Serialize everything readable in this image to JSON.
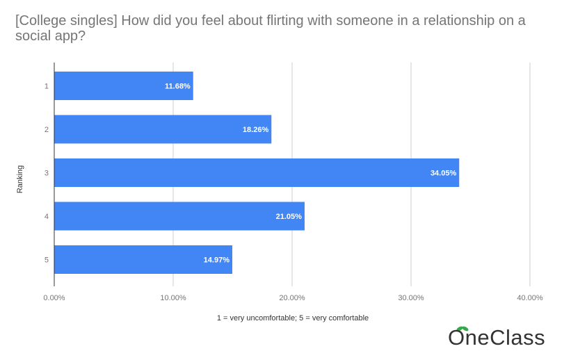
{
  "chart_data": {
    "type": "bar",
    "orientation": "horizontal",
    "title": "[College singles] How did you feel about flirting with someone in a relationship on a social app?",
    "categories": [
      "1",
      "2",
      "3",
      "4",
      "5"
    ],
    "values": [
      11.68,
      18.26,
      34.05,
      21.05,
      14.97
    ],
    "value_labels": [
      "11.68%",
      "18.26%",
      "34.05%",
      "21.05%",
      "14.97%"
    ],
    "xlabel": "1 = very uncomfortable; 5 = very comfortable",
    "ylabel": "Ranking",
    "xlim": [
      0,
      40
    ],
    "xticks": [
      "0.00%",
      "10.00%",
      "20.00%",
      "30.00%",
      "40.00%"
    ],
    "grid": true,
    "legend": "none"
  },
  "colors": {
    "bar": "#4285f4",
    "grid": "#cccccc",
    "axis": "#333333",
    "tick_text": "#757575",
    "title": "#757575",
    "logo_leaf": "#3aa64a"
  },
  "brand": {
    "logo_text": "OneClass"
  }
}
